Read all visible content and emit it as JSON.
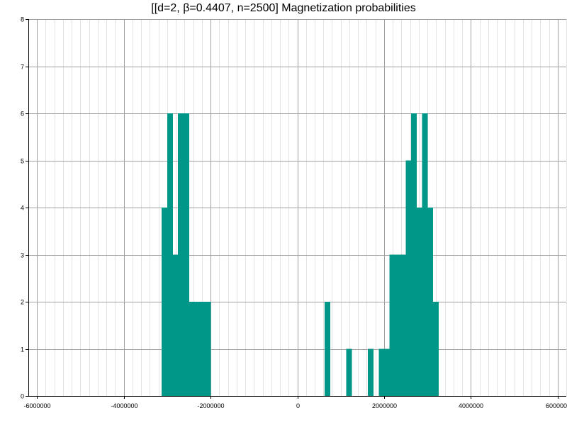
{
  "chart_data": {
    "type": "bar",
    "title": "[[d=2, β=0.4407, n=2500] Magnetization probabilities",
    "xlabel": "",
    "ylabel": "",
    "xlim": [
      -6200000,
      6200000
    ],
    "ylim": [
      0,
      8
    ],
    "grid": true,
    "bar_color": "#009688",
    "x_ticks": [
      {
        "value": -6000000,
        "label": "-6000000"
      },
      {
        "value": -4000000,
        "label": "-4000000"
      },
      {
        "value": -2000000,
        "label": "-2000000"
      },
      {
        "value": 0,
        "label": "0"
      },
      {
        "value": 2000000,
        "label": "2000000"
      },
      {
        "value": 4000000,
        "label": "4000000"
      },
      {
        "value": 6000000,
        "label": "6000000"
      }
    ],
    "y_ticks": [
      {
        "value": 0,
        "label": "0"
      },
      {
        "value": 1,
        "label": "1"
      },
      {
        "value": 2,
        "label": "2"
      },
      {
        "value": 3,
        "label": "3"
      },
      {
        "value": 4,
        "label": "4"
      },
      {
        "value": 5,
        "label": "5"
      },
      {
        "value": 6,
        "label": "6"
      },
      {
        "value": 7,
        "label": "7"
      },
      {
        "value": 8,
        "label": "8"
      }
    ],
    "bin_width": 125000,
    "bins": [
      {
        "x": -3125000,
        "y": 4
      },
      {
        "x": -3000000,
        "y": 6
      },
      {
        "x": -2875000,
        "y": 3
      },
      {
        "x": -2750000,
        "y": 6
      },
      {
        "x": -2625000,
        "y": 6
      },
      {
        "x": -2500000,
        "y": 2
      },
      {
        "x": -2375000,
        "y": 2
      },
      {
        "x": -2250000,
        "y": 2
      },
      {
        "x": -2125000,
        "y": 2
      },
      {
        "x": 625000,
        "y": 2
      },
      {
        "x": 1125000,
        "y": 1
      },
      {
        "x": 1625000,
        "y": 1
      },
      {
        "x": 1875000,
        "y": 1
      },
      {
        "x": 2000000,
        "y": 1
      },
      {
        "x": 2125000,
        "y": 3
      },
      {
        "x": 2250000,
        "y": 3
      },
      {
        "x": 2375000,
        "y": 3
      },
      {
        "x": 2500000,
        "y": 5
      },
      {
        "x": 2625000,
        "y": 6
      },
      {
        "x": 2750000,
        "y": 4
      },
      {
        "x": 2875000,
        "y": 6
      },
      {
        "x": 3000000,
        "y": 4
      },
      {
        "x": 3125000,
        "y": 2
      }
    ]
  }
}
